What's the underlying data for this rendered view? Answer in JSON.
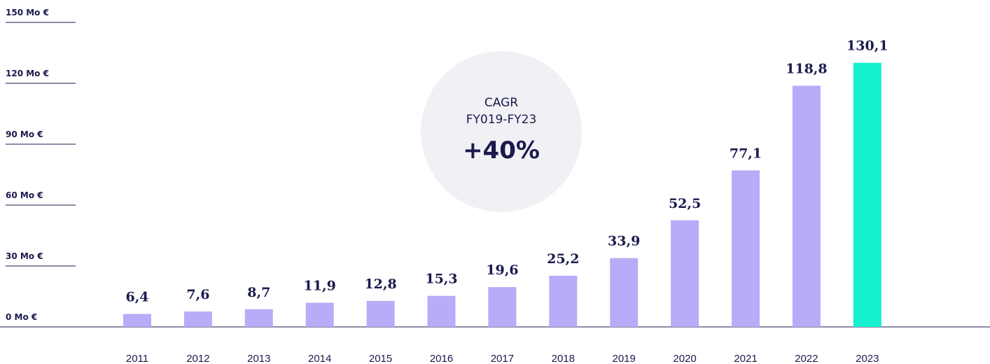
{
  "chart_data": {
    "type": "bar",
    "categories": [
      "2011",
      "2012",
      "2013",
      "2014",
      "2015",
      "2016",
      "2017",
      "2018",
      "2019",
      "2020",
      "2021",
      "2022",
      "2023"
    ],
    "values": [
      6.4,
      7.6,
      8.7,
      11.9,
      12.8,
      15.3,
      19.6,
      25.2,
      33.9,
      52.5,
      77.1,
      118.8,
      130.1
    ],
    "value_labels": [
      "6,4",
      "7,6",
      "8,7",
      "11,9",
      "12,8",
      "15,3",
      "19,6",
      "25,2",
      "33,9",
      "52,5",
      "77,1",
      "118,8",
      "130,1"
    ],
    "colors": [
      "#b9abf8",
      "#b9abf8",
      "#b9abf8",
      "#b9abf8",
      "#b9abf8",
      "#b9abf8",
      "#b9abf8",
      "#b9abf8",
      "#b9abf8",
      "#b9abf8",
      "#b9abf8",
      "#b9abf8",
      "#15f0cf"
    ],
    "ylim": [
      0,
      150
    ],
    "yticks": [
      {
        "value": 0,
        "label": "0 Mo €"
      },
      {
        "value": 30,
        "label": "30 Mo €"
      },
      {
        "value": 60,
        "label": "60 Mo €"
      },
      {
        "value": 90,
        "label": "90 Mo €"
      },
      {
        "value": 120,
        "label": "120 Mo €"
      },
      {
        "value": 150,
        "label": "150 Mo €"
      }
    ],
    "annotation": {
      "line1": "CAGR",
      "line2": "FY019-FY23",
      "value": "+40%"
    }
  }
}
